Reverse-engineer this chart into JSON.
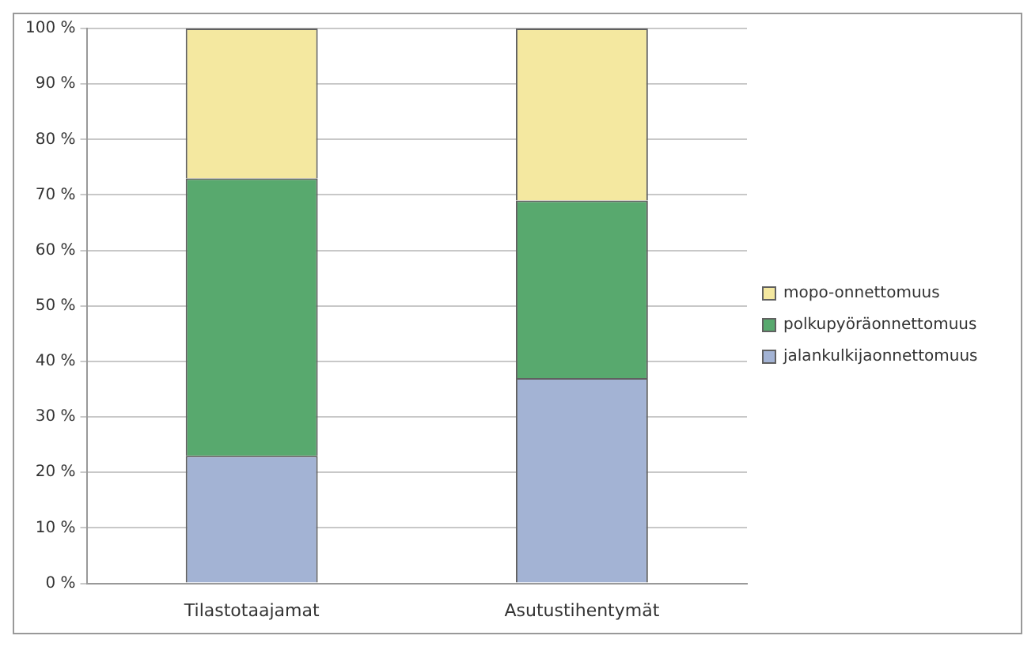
{
  "chart_data": {
    "type": "bar",
    "stacked": true,
    "categories": [
      "Tilastotaajamat",
      "Asutustihentymät"
    ],
    "series": [
      {
        "name": "jalankulkijaonnettomuus",
        "color": "#a3b3d4",
        "values": [
          23,
          37
        ]
      },
      {
        "name": "polkupyöräonnettomuus",
        "color": "#58a96e",
        "values": [
          50,
          32
        ]
      },
      {
        "name": "mopo-onnettomuus",
        "color": "#f4e8a0",
        "values": [
          27,
          31
        ]
      }
    ],
    "ylim": [
      0,
      100
    ],
    "yticks": [
      {
        "value": 0,
        "label": "0 %"
      },
      {
        "value": 10,
        "label": "10 %"
      },
      {
        "value": 20,
        "label": "20 %"
      },
      {
        "value": 30,
        "label": "30 %"
      },
      {
        "value": 40,
        "label": "40 %"
      },
      {
        "value": 50,
        "label": "50 %"
      },
      {
        "value": 60,
        "label": "60 %"
      },
      {
        "value": 70,
        "label": "70 %"
      },
      {
        "value": 80,
        "label": "80 %"
      },
      {
        "value": 90,
        "label": "90 %"
      },
      {
        "value": 100,
        "label": "100 %"
      }
    ],
    "grid": "y",
    "legend": "right"
  }
}
